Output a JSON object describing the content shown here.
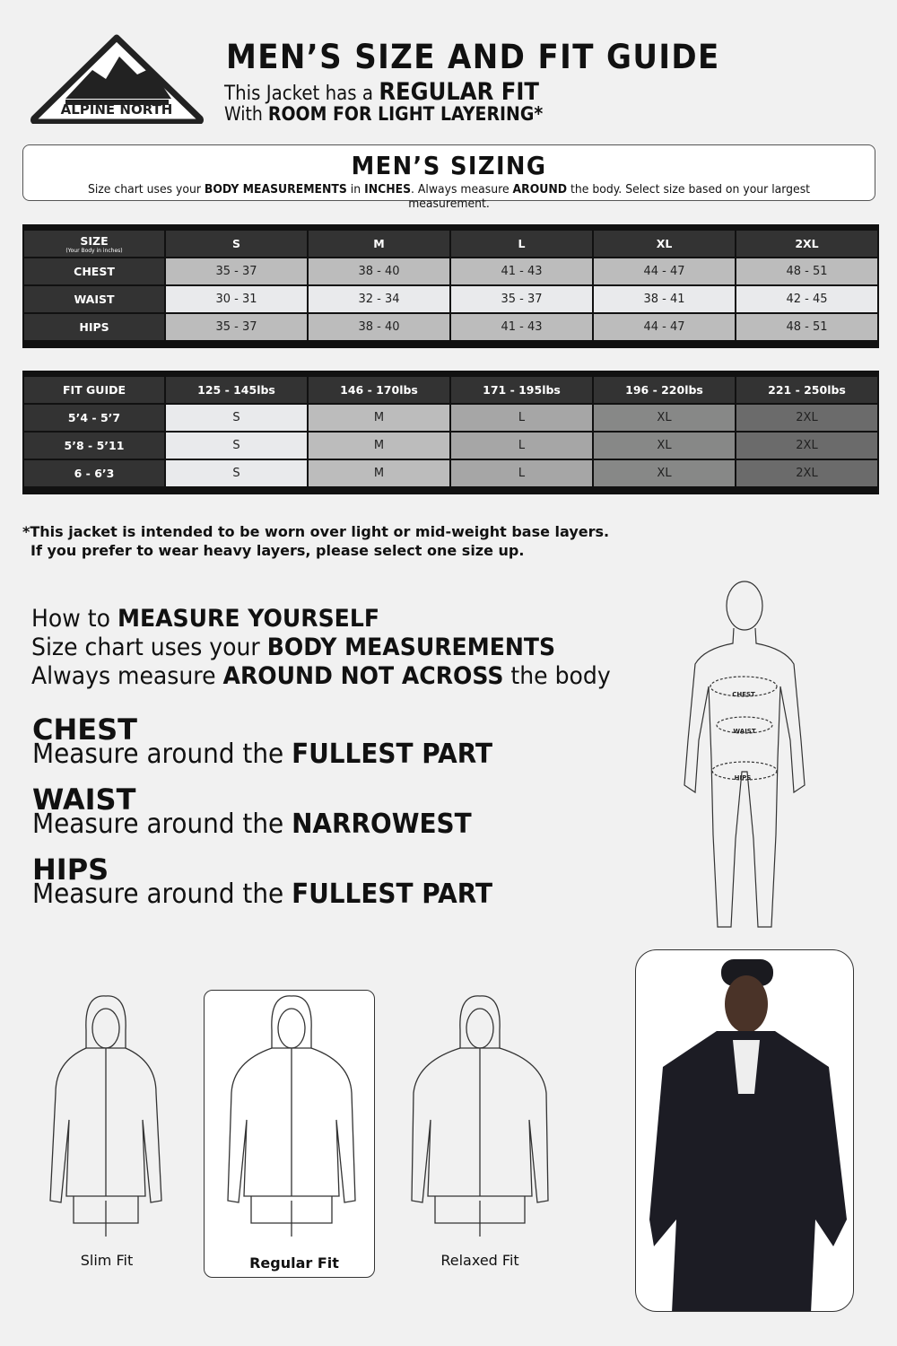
{
  "brand": {
    "logo_text": "ALPINE NORTH"
  },
  "header": {
    "title": "MEN’S SIZE AND FIT GUIDE",
    "line1_pre": "This Jacket has a ",
    "line1_bold": "REGULAR FIT",
    "line2_pre": "With ",
    "line2_bold": "ROOM FOR LIGHT LAYERING*"
  },
  "sizing": {
    "title": "MEN’S SIZING",
    "desc": [
      "Size chart uses your ",
      "BODY MEASUREMENTS",
      " in ",
      "INCHES",
      ". Always measure ",
      "AROUND",
      " the body. Select size based on your largest measurement."
    ]
  },
  "size_table": {
    "corner": "SIZE",
    "corner_sub": "(Your Body in inches)",
    "sizes": [
      "S",
      "M",
      "L",
      "XL",
      "2XL"
    ],
    "rows": [
      {
        "label": "CHEST",
        "values": [
          "35 - 37",
          "38 - 40",
          "41 - 43",
          "44 - 47",
          "48 - 51"
        ]
      },
      {
        "label": "WAIST",
        "values": [
          "30 - 31",
          "32 - 34",
          "35 - 37",
          "38 - 41",
          "42 - 45"
        ]
      },
      {
        "label": "HIPS",
        "values": [
          "35 - 37",
          "38 - 40",
          "41 - 43",
          "44 - 47",
          "48 - 51"
        ]
      }
    ]
  },
  "fit_table": {
    "corner": "FIT GUIDE",
    "weights": [
      "125 - 145lbs",
      "146 - 170lbs",
      "171 - 195lbs",
      "196 - 220lbs",
      "221 - 250lbs"
    ],
    "rows": [
      {
        "label": "5’4 - 5’7",
        "values": [
          "S",
          "M",
          "L",
          "XL",
          "2XL"
        ]
      },
      {
        "label": "5’8 - 5’11",
        "values": [
          "S",
          "M",
          "L",
          "XL",
          "2XL"
        ]
      },
      {
        "label": "6 - 6’3",
        "values": [
          "S",
          "M",
          "L",
          "XL",
          "2XL"
        ]
      }
    ],
    "colors": [
      "#e9eaec",
      "#bcbcbc",
      "#a6a6a6",
      "#878887",
      "#6b6b6b"
    ]
  },
  "note": {
    "line1": "*This jacket is intended to be worn over light or mid-weight base layers.",
    "line2": "If you prefer to wear heavy layers, please select one size up."
  },
  "measure": {
    "l1_pre": "How to ",
    "l1_bold": "MEASURE YOURSELF",
    "l2_pre": "Size chart uses your ",
    "l2_bold": "BODY MEASUREMENTS",
    "l3_pre": "Always measure ",
    "l3_bold": "AROUND NOT ACROSS",
    "l3_post": " the body",
    "items": [
      {
        "head": "CHEST",
        "pre": "Measure around the ",
        "bold": "FULLEST PART"
      },
      {
        "head": "WAIST",
        "pre": "Measure around the ",
        "bold": "NARROWEST"
      },
      {
        "head": "HIPS",
        "pre": "Measure around the ",
        "bold": "FULLEST PART"
      }
    ],
    "figure_labels": [
      "CHEST",
      "WAIST",
      "HIPS"
    ]
  },
  "fits": [
    "Slim Fit",
    "Regular Fit",
    "Relaxed Fit"
  ]
}
